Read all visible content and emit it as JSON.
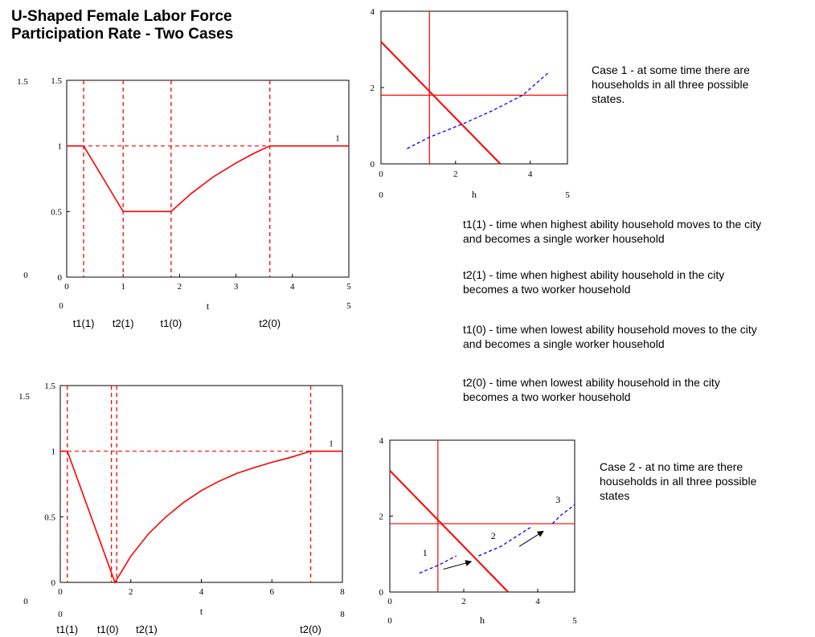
{
  "title_lines": [
    "U-Shaped Female Labor Force",
    "Participation Rate - Two Cases"
  ],
  "case1_text": [
    "Case 1 - at some time there are",
    "households in all three possible",
    "states."
  ],
  "case2_text": [
    "Case 2 - at no time are there",
    "households in all three possible",
    "states"
  ],
  "definitions": [
    {
      "lines": [
        "t1(1) - time when highest ability household moves to the city",
        "and becomes a single worker household"
      ]
    },
    {
      "lines": [
        "t2(1) - time when highest ability household in the city",
        "becomes a two worker household"
      ]
    },
    {
      "lines": [
        "t1(0) - time when lowest ability household moves to the city",
        "and becomes a single worker household"
      ]
    },
    {
      "lines": [
        "t2(0) - time when lowest ability household in the city",
        "becomes a two worker household"
      ]
    }
  ],
  "colors": {
    "curve": "#ff0000",
    "dash_curve": "#0000ff",
    "arrow": "#000000"
  },
  "chart_data": [
    {
      "id": "lfp1",
      "type": "line",
      "xlim": [
        0,
        5
      ],
      "ylim": [
        0,
        1.5
      ],
      "xticks": [
        0,
        1,
        2,
        3,
        4,
        5
      ],
      "yticks": [
        0,
        0.5,
        1,
        1.5
      ],
      "xlabel": "t",
      "corner_labels": {
        "y_max": "1.5",
        "y_min": "0",
        "x_min": "0",
        "x_max": "5"
      },
      "vlines": [
        0.3,
        1.0,
        1.85,
        3.6
      ],
      "hline": 1,
      "series_label": "1",
      "points": [
        [
          0,
          1
        ],
        [
          0.3,
          1
        ],
        [
          1.0,
          0.5
        ],
        [
          1.85,
          0.5
        ],
        [
          2.2,
          0.635
        ],
        [
          2.6,
          0.765
        ],
        [
          3.0,
          0.87
        ],
        [
          3.3,
          0.94
        ],
        [
          3.6,
          1
        ],
        [
          5,
          1
        ]
      ],
      "event_labels": [
        {
          "text": "t1(1)",
          "x": 0.3
        },
        {
          "text": "t2(1)",
          "x": 1.0
        },
        {
          "text": "t1(0)",
          "x": 1.85
        },
        {
          "text": "t2(0)",
          "x": 3.6
        }
      ]
    },
    {
      "id": "lfp2",
      "type": "line",
      "xlim": [
        0,
        8
      ],
      "ylim": [
        0,
        1.5
      ],
      "xticks": [
        0,
        2,
        4,
        6,
        8
      ],
      "yticks": [
        0,
        0.5,
        1,
        1.5
      ],
      "xlabel": "t",
      "corner_labels": {
        "y_max": "1.5",
        "y_min": "0",
        "x_min": "0",
        "x_max": "8"
      },
      "vlines": [
        0.2,
        1.45,
        1.6,
        7.1
      ],
      "hline": 1,
      "series_label": "1",
      "points": [
        [
          0,
          1
        ],
        [
          0.2,
          1
        ],
        [
          1.55,
          0
        ],
        [
          2.0,
          0.2
        ],
        [
          2.5,
          0.37
        ],
        [
          3.0,
          0.5
        ],
        [
          3.5,
          0.61
        ],
        [
          4.0,
          0.7
        ],
        [
          4.5,
          0.77
        ],
        [
          5.0,
          0.83
        ],
        [
          5.5,
          0.875
        ],
        [
          6.0,
          0.915
        ],
        [
          6.5,
          0.95
        ],
        [
          7.1,
          1
        ],
        [
          8,
          1
        ]
      ],
      "event_labels": [
        {
          "text": "t1(1)",
          "x": 0.2
        },
        {
          "text": "t1(0)",
          "x": 1.35
        },
        {
          "text": "t2(1)",
          "x": 2.45
        },
        {
          "text": "t2(0)",
          "x": 7.1
        }
      ]
    },
    {
      "id": "h1",
      "type": "line",
      "xlim": [
        0,
        5
      ],
      "ylim": [
        0,
        4
      ],
      "xticks": [
        0,
        2,
        4
      ],
      "yticks": [
        0,
        2,
        4
      ],
      "xlabel": "h",
      "corner_labels": {
        "x_min": "0",
        "x_max": "5"
      },
      "vline": 1.3,
      "hline": 1.8,
      "solid_line": [
        [
          0,
          3.2
        ],
        [
          3.2,
          0
        ]
      ],
      "dashed_segments": [
        [
          [
            0.7,
            0.4
          ],
          [
            1.3,
            0.7
          ],
          [
            2.2,
            1.05
          ],
          [
            3.0,
            1.4
          ],
          [
            3.8,
            1.8
          ],
          [
            4.5,
            2.4
          ]
        ]
      ],
      "segment_labels": [],
      "arrows": []
    },
    {
      "id": "h2",
      "type": "line",
      "xlim": [
        0,
        5
      ],
      "ylim": [
        0,
        4
      ],
      "xticks": [
        0,
        2,
        4
      ],
      "yticks": [
        0,
        2,
        4
      ],
      "xlabel": "h",
      "corner_labels": {
        "x_min": "0",
        "x_max": "5"
      },
      "vline": 1.3,
      "hline": 1.8,
      "solid_line": [
        [
          0,
          3.2
        ],
        [
          3.2,
          0
        ]
      ],
      "dashed_segments": [
        [
          [
            0.8,
            0.5
          ],
          [
            1.3,
            0.7
          ],
          [
            1.8,
            0.95
          ]
        ],
        [
          [
            2.4,
            0.95
          ],
          [
            3.0,
            1.2
          ],
          [
            3.8,
            1.7
          ]
        ],
        [
          [
            4.4,
            1.8
          ],
          [
            4.6,
            2.0
          ],
          [
            5.0,
            2.3
          ]
        ]
      ],
      "segment_labels": [
        {
          "text": "1",
          "x": 0.95,
          "y": 0.95
        },
        {
          "text": "2",
          "x": 2.8,
          "y": 1.4
        },
        {
          "text": "3",
          "x": 4.55,
          "y": 2.35
        }
      ],
      "arrows": [
        [
          [
            1.45,
            0.6
          ],
          [
            2.2,
            0.8
          ]
        ],
        [
          [
            3.5,
            1.2
          ],
          [
            4.15,
            1.6
          ]
        ]
      ]
    }
  ]
}
